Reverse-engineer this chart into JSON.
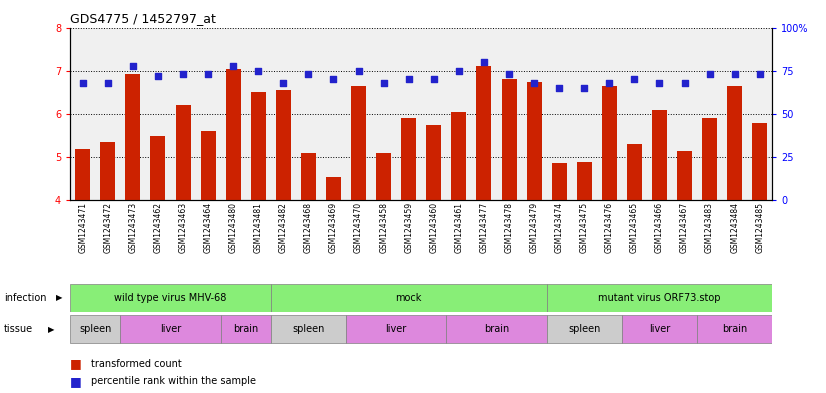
{
  "title": "GDS4775 / 1452797_at",
  "samples": [
    "GSM1243471",
    "GSM1243472",
    "GSM1243473",
    "GSM1243462",
    "GSM1243463",
    "GSM1243464",
    "GSM1243480",
    "GSM1243481",
    "GSM1243482",
    "GSM1243468",
    "GSM1243469",
    "GSM1243470",
    "GSM1243458",
    "GSM1243459",
    "GSM1243460",
    "GSM1243461",
    "GSM1243477",
    "GSM1243478",
    "GSM1243479",
    "GSM1243474",
    "GSM1243475",
    "GSM1243476",
    "GSM1243465",
    "GSM1243466",
    "GSM1243467",
    "GSM1243483",
    "GSM1243484",
    "GSM1243485"
  ],
  "bar_values": [
    5.2,
    5.35,
    6.93,
    5.5,
    6.2,
    5.6,
    7.05,
    6.5,
    6.55,
    5.1,
    4.55,
    6.65,
    5.1,
    5.9,
    5.75,
    6.05,
    7.1,
    6.8,
    6.75,
    4.87,
    4.9,
    6.65,
    5.3,
    6.1,
    5.15,
    5.9,
    6.65,
    5.8
  ],
  "dot_values": [
    68,
    68,
    78,
    72,
    73,
    73,
    78,
    75,
    68,
    73,
    70,
    75,
    68,
    70,
    70,
    75,
    80,
    73,
    68,
    65,
    65,
    68,
    70,
    68,
    68,
    73,
    73,
    73
  ],
  "ylim_left": [
    4,
    8
  ],
  "ylim_right": [
    0,
    100
  ],
  "yticks_left": [
    4,
    5,
    6,
    7,
    8
  ],
  "yticks_right": [
    0,
    25,
    50,
    75,
    100
  ],
  "bar_color": "#cc2200",
  "dot_color": "#2222cc",
  "bar_width": 0.6,
  "infection_ranges": [
    {
      "label": "wild type virus MHV-68",
      "start": 0,
      "end": 8,
      "color": "#88ee77"
    },
    {
      "label": "mock",
      "start": 8,
      "end": 19,
      "color": "#88ee77"
    },
    {
      "label": "mutant virus ORF73.stop",
      "start": 19,
      "end": 28,
      "color": "#88ee77"
    }
  ],
  "tissue_ranges": [
    {
      "label": "spleen",
      "start": 0,
      "end": 2,
      "color": "#cccccc"
    },
    {
      "label": "liver",
      "start": 2,
      "end": 6,
      "color": "#dd88dd"
    },
    {
      "label": "brain",
      "start": 6,
      "end": 8,
      "color": "#dd88dd"
    },
    {
      "label": "spleen",
      "start": 8,
      "end": 11,
      "color": "#cccccc"
    },
    {
      "label": "liver",
      "start": 11,
      "end": 15,
      "color": "#dd88dd"
    },
    {
      "label": "brain",
      "start": 15,
      "end": 19,
      "color": "#dd88dd"
    },
    {
      "label": "spleen",
      "start": 19,
      "end": 22,
      "color": "#cccccc"
    },
    {
      "label": "liver",
      "start": 22,
      "end": 25,
      "color": "#dd88dd"
    },
    {
      "label": "brain",
      "start": 25,
      "end": 28,
      "color": "#dd88dd"
    }
  ]
}
